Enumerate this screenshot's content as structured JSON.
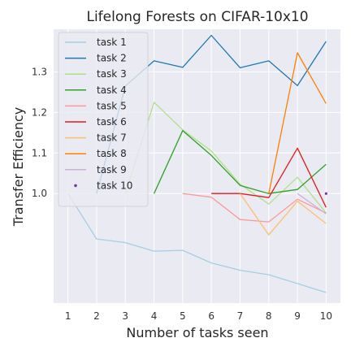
{
  "chart_data": {
    "type": "line",
    "title": "Lifelong Forests on CIFAR-10x10",
    "xlabel": "Number of tasks seen",
    "ylabel": "Transfer Efficiency",
    "x_ticks": [
      "1",
      "2",
      "3",
      "4",
      "5",
      "6",
      "7",
      "8",
      "9",
      "10"
    ],
    "y_ticks": [
      "1.0",
      "1.1",
      "1.2",
      "1.3"
    ],
    "xlim": [
      0.5,
      10.5
    ],
    "ylim": [
      0.73,
      1.405
    ],
    "grid": true,
    "legend_position": "upper-left",
    "series": [
      {
        "name": "task 1",
        "color": "#a6cee3",
        "x": [
          1,
          2,
          3,
          4,
          5,
          6,
          7,
          8,
          9,
          10
        ],
        "y": [
          1.0,
          0.888,
          0.879,
          0.858,
          0.86,
          0.829,
          0.811,
          0.8,
          0.778,
          0.756
        ]
      },
      {
        "name": "task 2",
        "color": "#1f78b4",
        "x": [
          2,
          3,
          4,
          5,
          6,
          7,
          8,
          9,
          10
        ],
        "y": [
          1.0,
          1.265,
          1.327,
          1.311,
          1.39,
          1.31,
          1.327,
          1.266,
          1.375
        ]
      },
      {
        "name": "task 3",
        "color": "#b2df8a",
        "x": [
          3,
          4,
          5,
          6,
          7,
          8,
          9,
          10
        ],
        "y": [
          1.0,
          1.225,
          1.157,
          1.105,
          1.023,
          0.974,
          1.04,
          0.952
        ]
      },
      {
        "name": "task 4",
        "color": "#33a02c",
        "x": [
          4,
          5,
          6,
          7,
          8,
          9,
          10
        ],
        "y": [
          1.0,
          1.155,
          1.094,
          1.02,
          1.0,
          1.01,
          1.072
        ]
      },
      {
        "name": "task 5",
        "color": "#fb9a99",
        "x": [
          5,
          6,
          7,
          8,
          9,
          10
        ],
        "y": [
          1.0,
          0.991,
          0.936,
          0.93,
          0.986,
          0.952
        ]
      },
      {
        "name": "task 6",
        "color": "#e31a1c",
        "x": [
          6,
          7,
          8,
          9,
          10
        ],
        "y": [
          1.0,
          1.0,
          0.99,
          1.112,
          0.966
        ]
      },
      {
        "name": "task 7",
        "color": "#fdbf6f",
        "x": [
          7,
          8,
          9,
          10
        ],
        "y": [
          1.0,
          0.898,
          0.981,
          0.926
        ]
      },
      {
        "name": "task 8",
        "color": "#ff7f00",
        "x": [
          8,
          9,
          10
        ],
        "y": [
          1.0,
          1.347,
          1.222
        ]
      },
      {
        "name": "task 9",
        "color": "#cab2d6",
        "x": [
          9,
          10
        ],
        "y": [
          1.0,
          0.95
        ]
      },
      {
        "name": "task 10",
        "color": "#6a3d9a",
        "x": [
          10
        ],
        "y": [
          1.0
        ]
      }
    ]
  }
}
